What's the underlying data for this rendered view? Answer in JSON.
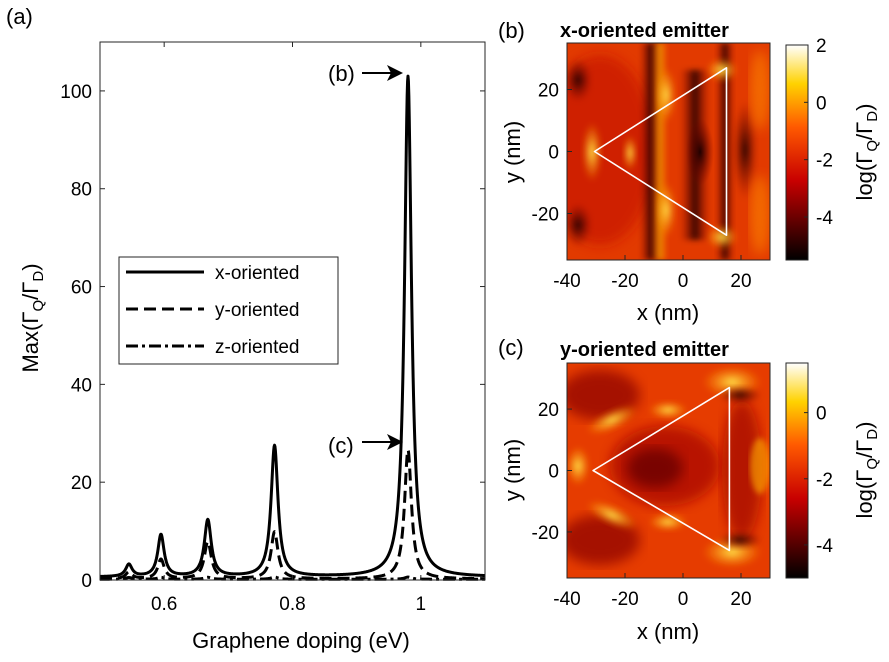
{
  "chart_data": [
    {
      "panel": "(a)",
      "type": "line",
      "xlabel": "Graphene doping (eV)",
      "ylabel_main": "Max(Γ",
      "ylabel_sub1": "Q",
      "ylabel_mid": "/Γ",
      "ylabel_sub2": "D",
      "ylabel_end": ")",
      "xlim": [
        0.5,
        1.1
      ],
      "ylim": [
        0,
        110
      ],
      "xticks": [
        0.6,
        0.8,
        1.0
      ],
      "xtick_labels": [
        "0.6",
        "0.8",
        "1"
      ],
      "yticks": [
        0,
        20,
        40,
        60,
        80,
        100
      ],
      "ytick_labels": [
        "0",
        "20",
        "40",
        "60",
        "80",
        "100"
      ],
      "legend_position": "center-left",
      "peaks": [
        {
          "x0": 0.545,
          "w": 0.006,
          "x": 2.5,
          "y": 1.4,
          "z": 0.35
        },
        {
          "x0": 0.595,
          "w": 0.006,
          "x": 8.6,
          "y": 4.0,
          "z": 0.4
        },
        {
          "x0": 0.668,
          "w": 0.0065,
          "x": 11.6,
          "y": 7.6,
          "z": 0.4
        },
        {
          "x0": 0.772,
          "w": 0.0065,
          "x": 26.8,
          "y": 9.6,
          "z": 0.45
        },
        {
          "x0": 0.98,
          "w": 0.0065,
          "x": 102.4,
          "y": 26.4,
          "z": 0.45
        }
      ],
      "baseline": {
        "x": 0.6,
        "y": 0.2,
        "z": 0.15
      },
      "series": [
        {
          "name": "x-oriented",
          "key": "x",
          "dash": "solid"
        },
        {
          "name": "y-oriented",
          "key": "y",
          "dash": "dashed"
        },
        {
          "name": "z-oriented",
          "key": "z",
          "dash": "dashdot"
        }
      ],
      "annotations": [
        {
          "label": "(b)",
          "x": 0.98,
          "y": 103
        },
        {
          "label": "(c)",
          "x": 0.98,
          "y": 27
        }
      ]
    },
    {
      "panel": "(b)",
      "type": "heatmap",
      "title": "x-oriented emitter",
      "xlabel": "x (nm)",
      "ylabel": "y (nm)",
      "xlim": [
        -40,
        30
      ],
      "ylim": [
        -35,
        35
      ],
      "xticks": [
        -40,
        -20,
        0,
        20
      ],
      "xtick_labels": [
        "-40",
        "-20",
        "0",
        "20"
      ],
      "yticks": [
        -20,
        0,
        20
      ],
      "ytick_labels": [
        "-20",
        "0",
        "20"
      ],
      "triangle": [
        [
          -30.5,
          0
        ],
        [
          15,
          27
        ],
        [
          15,
          -27
        ]
      ],
      "colorbar_label_main": "log(Γ",
      "colorbar_label_sub1": "Q",
      "colorbar_label_mid": "/Γ",
      "colorbar_label_sub2": "D",
      "colorbar_label_end": ")",
      "clim": [
        -5.5,
        2
      ],
      "colorbar_ticks": [
        -4,
        -2,
        0,
        2
      ],
      "colorbar_tick_labels": [
        "-4",
        "-2",
        "0",
        "2"
      ]
    },
    {
      "panel": "(c)",
      "type": "heatmap",
      "title": "y-oriented emitter",
      "xlabel": "x (nm)",
      "ylabel": "y (nm)",
      "xlim": [
        -40,
        30
      ],
      "ylim": [
        -35,
        35
      ],
      "xticks": [
        -40,
        -20,
        0,
        20
      ],
      "xtick_labels": [
        "-40",
        "-20",
        "0",
        "20"
      ],
      "yticks": [
        -20,
        0,
        20
      ],
      "ytick_labels": [
        "-20",
        "0",
        "20"
      ],
      "triangle": [
        [
          -31,
          0
        ],
        [
          16,
          27
        ],
        [
          16,
          -26
        ]
      ],
      "colorbar_label_main": "log(Γ",
      "colorbar_label_sub1": "Q",
      "colorbar_label_mid": "/Γ",
      "colorbar_label_sub2": "D",
      "colorbar_label_end": ")",
      "clim": [
        -5,
        1.5
      ],
      "colorbar_ticks": [
        -4,
        -2,
        0
      ],
      "colorbar_tick_labels": [
        "-4",
        "-2",
        "0"
      ]
    }
  ],
  "colors": {
    "axis": "#262626",
    "triangle": "#ffffff"
  },
  "colormap": "hot"
}
